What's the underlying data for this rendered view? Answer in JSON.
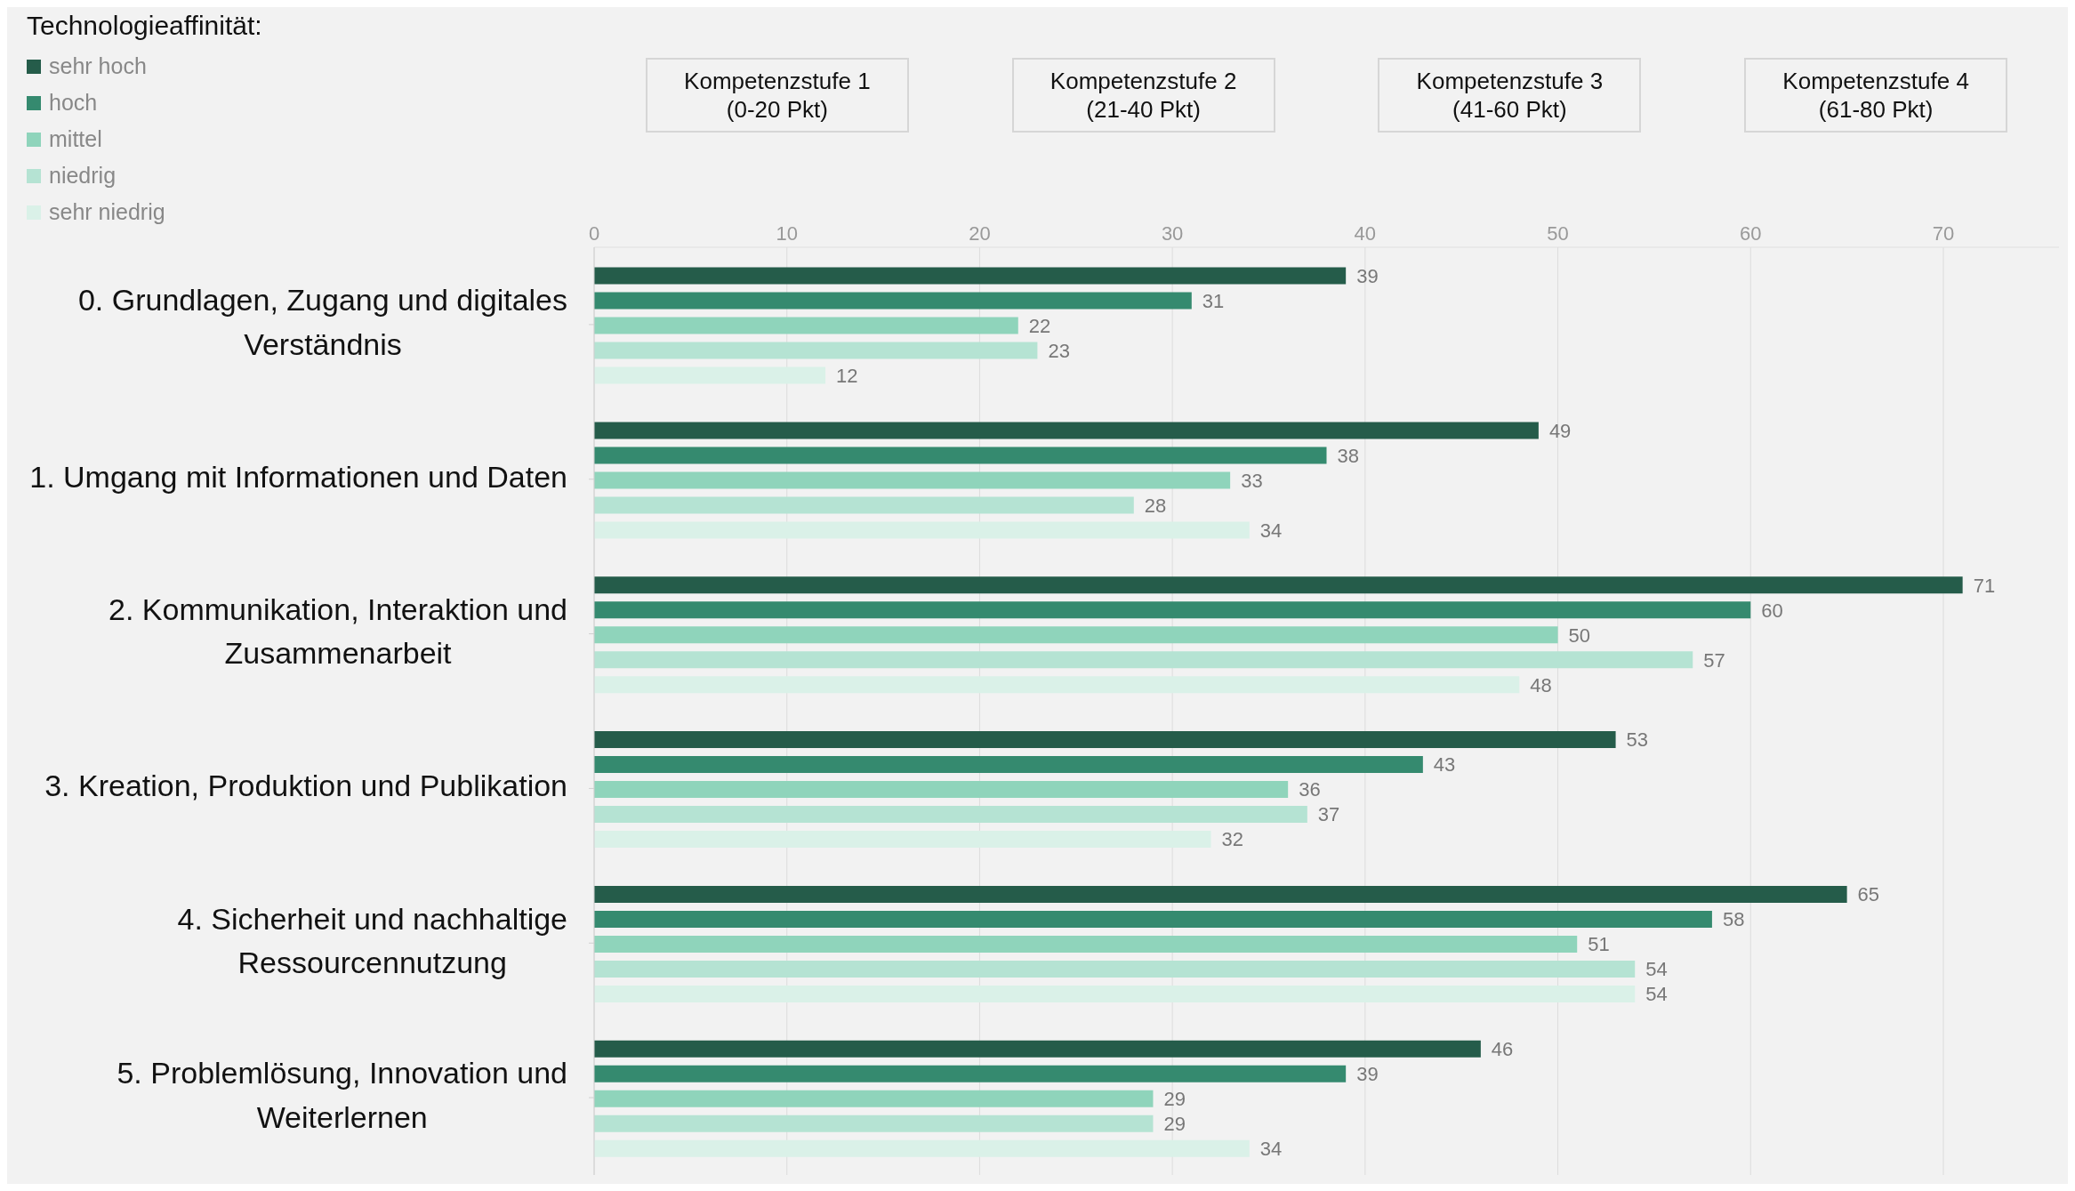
{
  "chart_data": {
    "type": "bar",
    "orientation": "horizontal",
    "legend_title": "Technologieaffinität:",
    "legend": "top left",
    "categories": [
      "0. Grundlagen, Zugang und digitales Verständnis",
      "1. Umgang mit Informationen und Daten",
      "2. Kommunikation, Interaktion und Zusammenarbeit",
      "3. Kreation, Produktion und Publikation",
      "4. Sicherheit und nachhaltige Ressourcennutzung",
      "5. Problemlösung, Innovation und Weiterlernen"
    ],
    "series": [
      {
        "name": "sehr hoch",
        "color": "#255c4a",
        "values": [
          39,
          49,
          71,
          53,
          65,
          46
        ]
      },
      {
        "name": "hoch",
        "color": "#358a6f",
        "values": [
          31,
          38,
          60,
          43,
          58,
          39
        ]
      },
      {
        "name": "mittel",
        "color": "#8fd4bb",
        "values": [
          22,
          33,
          50,
          36,
          51,
          29
        ]
      },
      {
        "name": "niedrig",
        "color": "#b5e3d3",
        "values": [
          23,
          28,
          57,
          37,
          54,
          29
        ]
      },
      {
        "name": "sehr niedrig",
        "color": "#daf1e8",
        "values": [
          12,
          34,
          48,
          32,
          54,
          34
        ]
      }
    ],
    "xlim": [
      0,
      76
    ],
    "xticks": [
      0,
      10,
      20,
      30,
      40,
      50,
      60,
      70
    ],
    "grid": "x",
    "data_labels": true,
    "annotations": [
      "Kompetenzstufe 1\n(0-20 Pkt)",
      "Kompetenzstufe 2\n(21-40 Pkt)",
      "Kompetenzstufe 3\n(41-60 Pkt)",
      "Kompetenzstufe 4\n(61-80 Pkt)"
    ]
  }
}
